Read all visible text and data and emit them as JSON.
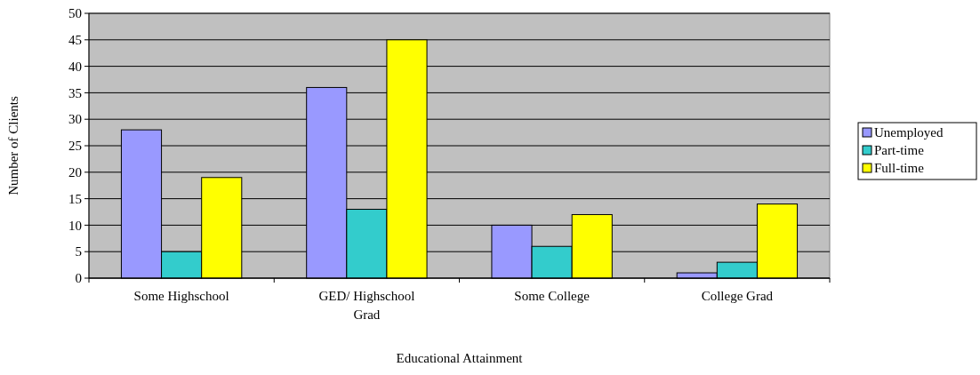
{
  "chart_data": {
    "type": "bar",
    "xlabel": "Educational Attainment",
    "ylabel": "Number of Clients",
    "categories": [
      "Some Highschool",
      "GED/ Highschool Grad",
      "Some College",
      "College Grad"
    ],
    "series": [
      {
        "name": "Unemployed",
        "color": "#9999ff",
        "values": [
          28,
          36,
          10,
          1
        ]
      },
      {
        "name": "Part-time",
        "color": "#33cccc",
        "values": [
          5,
          13,
          6,
          3
        ]
      },
      {
        "name": "Full-time",
        "color": "#ffff00",
        "values": [
          19,
          45,
          12,
          14
        ]
      }
    ],
    "ylim": [
      0,
      50
    ],
    "yticks": [
      0,
      5,
      10,
      15,
      20,
      25,
      30,
      35,
      40,
      45,
      50
    ],
    "grid": "y",
    "legend": "right"
  }
}
